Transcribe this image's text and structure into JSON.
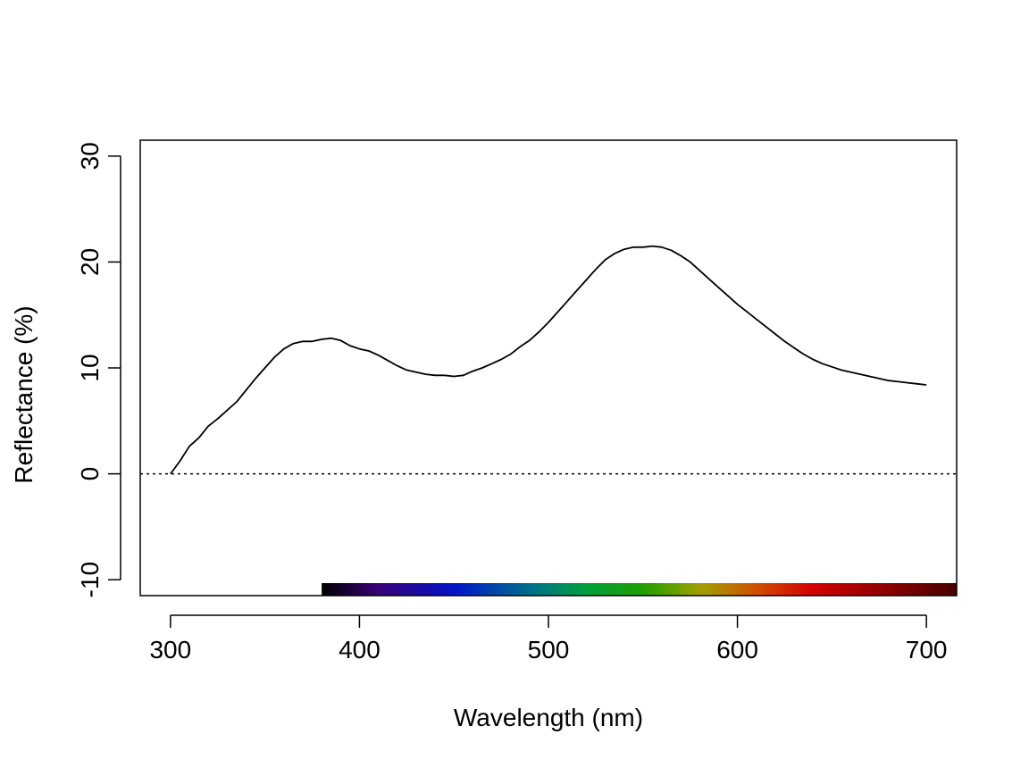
{
  "chart_data": {
    "type": "line",
    "title": "",
    "xlabel": "Wavelength (nm)",
    "ylabel": "Reflectance (%)",
    "xlim": [
      284,
      716
    ],
    "ylim": [
      -11.5,
      31.5
    ],
    "x_ticks": [
      300,
      400,
      500,
      600,
      700
    ],
    "y_ticks": [
      -10,
      0,
      10,
      20,
      30
    ],
    "grid": false,
    "legend": "none",
    "reference_line": {
      "y": 0,
      "style": "dotted",
      "color": "#000000"
    },
    "spectrum_bar": {
      "x_start": 380,
      "x_end": 716,
      "stops": [
        {
          "nm": 380,
          "color": "#000000"
        },
        {
          "nm": 410,
          "color": "#3a0078"
        },
        {
          "nm": 450,
          "color": "#0014c8"
        },
        {
          "nm": 490,
          "color": "#006e8c"
        },
        {
          "nm": 520,
          "color": "#00a03c"
        },
        {
          "nm": 550,
          "color": "#1e9e00"
        },
        {
          "nm": 580,
          "color": "#a0a000"
        },
        {
          "nm": 610,
          "color": "#d05000"
        },
        {
          "nm": 640,
          "color": "#d20000"
        },
        {
          "nm": 680,
          "color": "#8c0000"
        },
        {
          "nm": 716,
          "color": "#460000"
        }
      ]
    },
    "series": [
      {
        "color": "#000000",
        "x": [
          300,
          305,
          310,
          315,
          320,
          325,
          330,
          335,
          340,
          345,
          350,
          355,
          360,
          365,
          370,
          375,
          380,
          385,
          390,
          395,
          400,
          405,
          410,
          415,
          420,
          425,
          430,
          435,
          440,
          445,
          450,
          455,
          460,
          465,
          470,
          475,
          480,
          485,
          490,
          495,
          500,
          505,
          510,
          515,
          520,
          525,
          530,
          535,
          540,
          545,
          550,
          555,
          560,
          565,
          570,
          575,
          580,
          585,
          590,
          595,
          600,
          605,
          610,
          615,
          620,
          625,
          630,
          635,
          640,
          645,
          650,
          655,
          660,
          665,
          670,
          675,
          680,
          685,
          690,
          695,
          700
        ],
        "y": [
          0.0,
          1.2,
          2.6,
          3.4,
          4.5,
          5.2,
          6.0,
          6.8,
          7.9,
          9.0,
          10.0,
          11.0,
          11.8,
          12.3,
          12.5,
          12.5,
          12.7,
          12.8,
          12.6,
          12.1,
          11.8,
          11.6,
          11.2,
          10.7,
          10.2,
          9.8,
          9.6,
          9.4,
          9.3,
          9.3,
          9.2,
          9.3,
          9.7,
          10.0,
          10.4,
          10.8,
          11.3,
          12.0,
          12.6,
          13.4,
          14.3,
          15.3,
          16.3,
          17.3,
          18.3,
          19.3,
          20.2,
          20.8,
          21.2,
          21.4,
          21.4,
          21.5,
          21.4,
          21.1,
          20.6,
          20.0,
          19.2,
          18.4,
          17.6,
          16.8,
          16.0,
          15.3,
          14.6,
          13.9,
          13.2,
          12.5,
          11.9,
          11.3,
          10.8,
          10.4,
          10.1,
          9.8,
          9.6,
          9.4,
          9.2,
          9.0,
          8.8,
          8.7,
          8.6,
          8.5,
          8.4
        ]
      }
    ]
  }
}
